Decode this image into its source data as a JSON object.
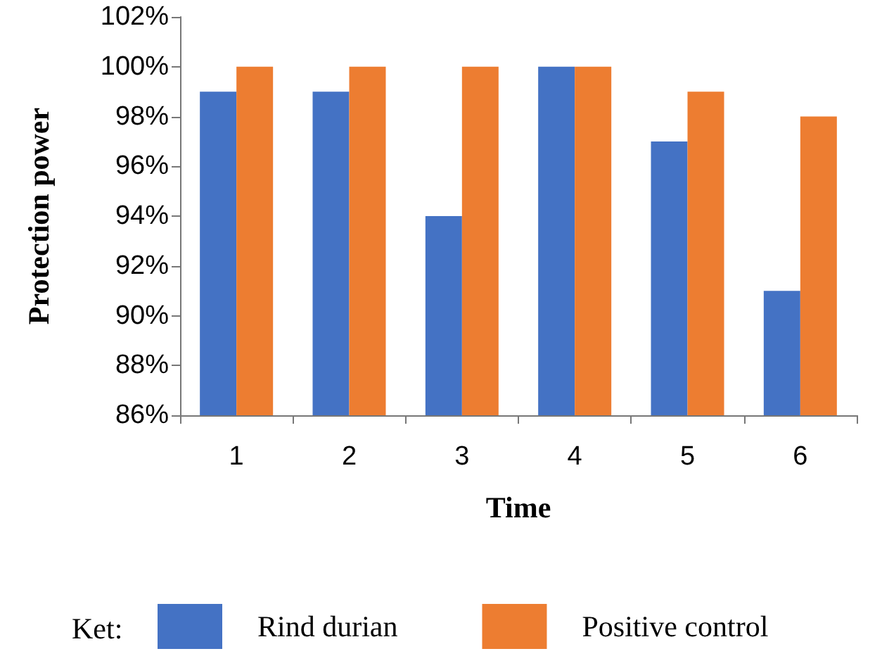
{
  "chart_data": {
    "type": "bar",
    "xlabel": "Time",
    "ylabel": "Protection power",
    "legend_title": "Ket:",
    "categories": [
      "1",
      "2",
      "3",
      "4",
      "5",
      "6"
    ],
    "series": [
      {
        "name": "Rind durian",
        "color": "#4472c4",
        "values": [
          99,
          99,
          94,
          100,
          97,
          91
        ]
      },
      {
        "name": "Positive control",
        "color": "#ed7d31",
        "values": [
          100,
          100,
          100,
          100,
          99,
          98
        ]
      }
    ],
    "ylim": [
      86,
      102
    ],
    "yticks": [
      {
        "value": 86,
        "label": "86%"
      },
      {
        "value": 88,
        "label": "88%"
      },
      {
        "value": 90,
        "label": "90%"
      },
      {
        "value": 92,
        "label": "92%"
      },
      {
        "value": 94,
        "label": "94%"
      },
      {
        "value": 96,
        "label": "96%"
      },
      {
        "value": 98,
        "label": "98%"
      },
      {
        "value": 100,
        "label": "100%"
      },
      {
        "value": 102,
        "label": "102%"
      }
    ],
    "grid": false,
    "legend": "bottom"
  }
}
